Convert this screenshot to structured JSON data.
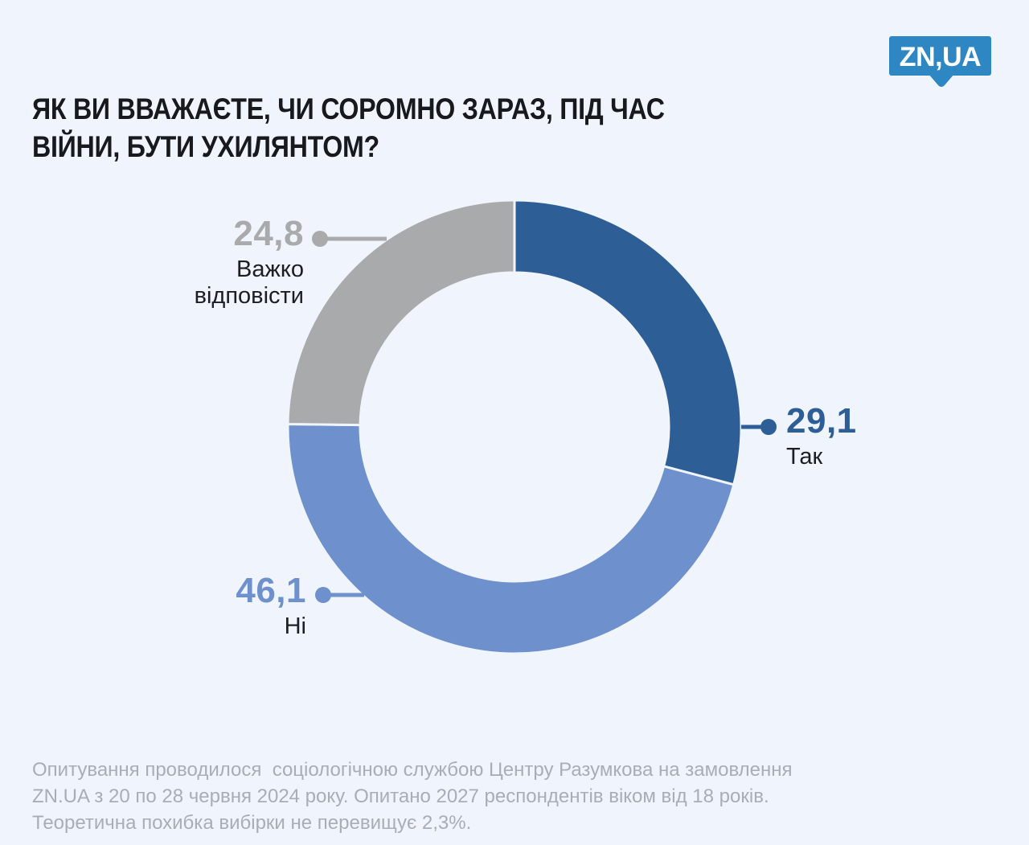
{
  "logo": {
    "text": "ZN,UA",
    "bg_color": "#2E86C3",
    "text_color": "#FFFFFF"
  },
  "header": {
    "title_lines": [
      "ЯК ВИ ВВАЖАЄТЕ, ЧИ СОРОМНО ЗАРАЗ, ПІД ЧАС",
      "ВІЙНИ, БУТИ УХИЛЯНТОМ?"
    ]
  },
  "chart_data": {
    "type": "pie",
    "subtype": "donut",
    "title": "ЯК ВИ ВВАЖАЄТЕ, ЧИ СОРОМНО ЗАРАЗ, ПІД ЧАС ВІЙНИ, БУТИ УХИЛЯНТОМ?",
    "unit": "percent",
    "start_angle_deg": 0,
    "direction": "clockwise",
    "inner_radius_ratio": 0.68,
    "legend_position": "callouts",
    "segments": [
      {
        "label": "Так",
        "value": 29.1,
        "display_value": "29,1",
        "color": "#2D5E96"
      },
      {
        "label": "Ні",
        "value": 46.1,
        "display_value": "46,1",
        "color": "#6E90CC"
      },
      {
        "label": "Важко відповісти",
        "value": 24.8,
        "display_value": "24,8",
        "color": "#A9AAAB"
      }
    ]
  },
  "footer": {
    "lines": [
      "Опитування проводилося  соціологічною службою Центру Разумкова на замовлення",
      "ZN.UA з 20 по 28 червня 2024 року. Опитано 2027 респондентів віком від 18 років.",
      "Теоретична похибка вибірки не перевищує 2,3%."
    ]
  },
  "colors": {
    "background": "#F0F4FC",
    "title_text": "#17191D",
    "label_text": "#1C1E21",
    "footer_text": "#A8ADB6"
  }
}
